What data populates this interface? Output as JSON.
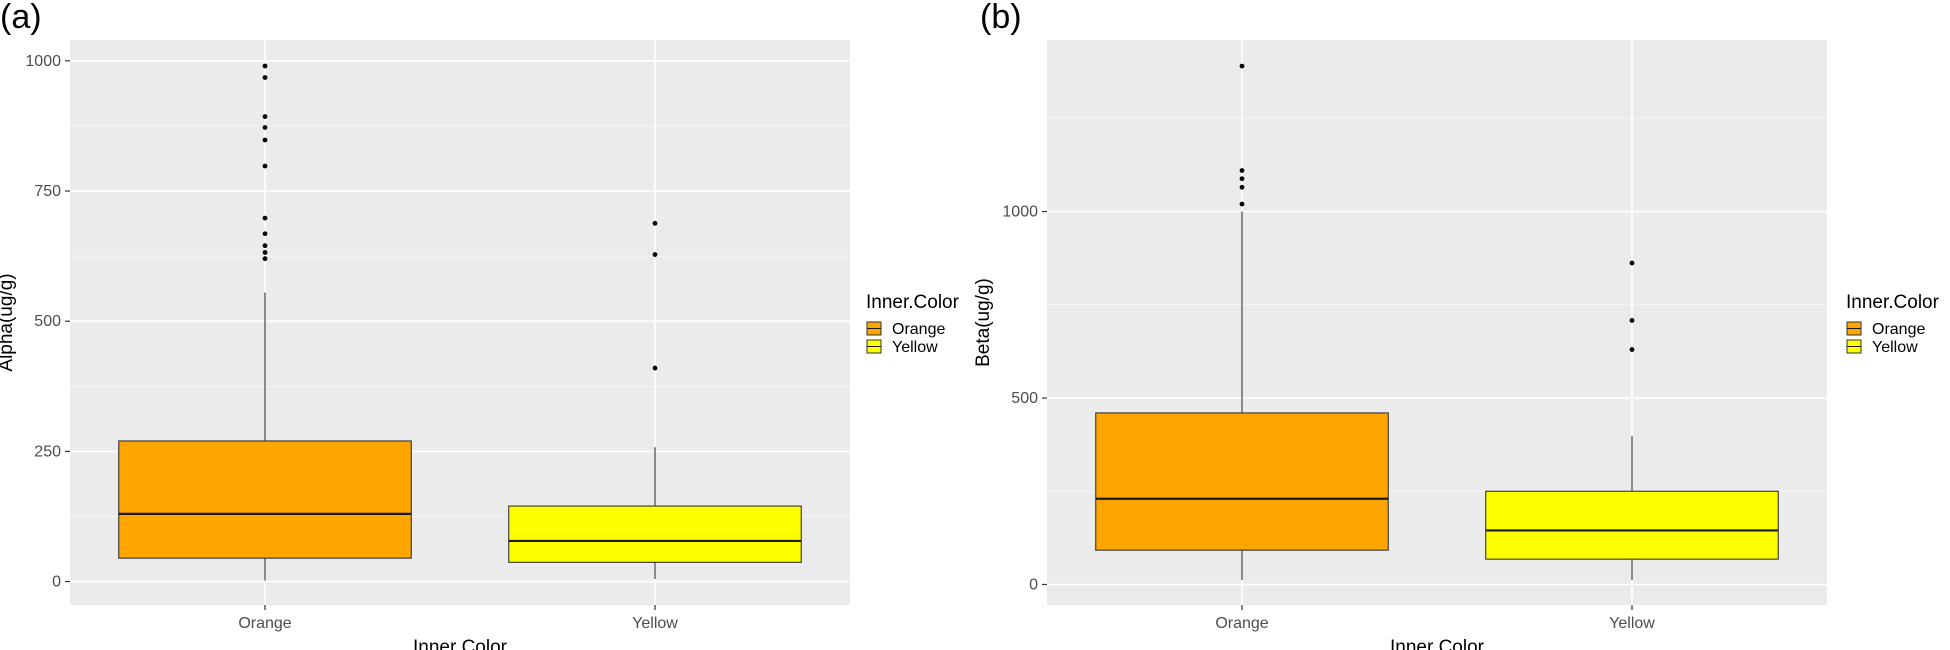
{
  "chart_data": [
    {
      "type": "boxplot",
      "panel_label": "(a)",
      "xlabel": "Inner Color",
      "ylabel": "Alpha(ug/g)",
      "categories": [
        "Orange",
        "Yellow"
      ],
      "yticks": [
        0,
        250,
        500,
        750,
        1000
      ],
      "ylim": [
        -45,
        1040
      ],
      "legend": {
        "title": "Inner.Color",
        "entries": [
          "Orange",
          "Yellow"
        ],
        "position": "right"
      },
      "colors": {
        "Orange": "#FFA500",
        "Yellow": "#FFFF00"
      },
      "boxes": [
        {
          "name": "Orange",
          "min": 2,
          "q1": 45,
          "median": 130,
          "q3": 270,
          "max": 555,
          "outliers": [
            620,
            632,
            645,
            668,
            698,
            798,
            848,
            872,
            893,
            968,
            990
          ]
        },
        {
          "name": "Yellow",
          "min": 5,
          "q1": 37,
          "median": 78,
          "q3": 145,
          "max": 258,
          "outliers": [
            410,
            628,
            688
          ]
        }
      ],
      "grid": true
    },
    {
      "type": "boxplot",
      "panel_label": "(b)",
      "xlabel": "Inner Color",
      "ylabel": "Beta(ug/g)",
      "categories": [
        "Orange",
        "Yellow"
      ],
      "yticks": [
        0,
        500,
        1000
      ],
      "ylim": [
        -55,
        1460
      ],
      "legend": {
        "title": "Inner.Color",
        "entries": [
          "Orange",
          "Yellow"
        ],
        "position": "right"
      },
      "colors": {
        "Orange": "#FFA500",
        "Yellow": "#FFFF00"
      },
      "boxes": [
        {
          "name": "Orange",
          "min": 12,
          "q1": 92,
          "median": 230,
          "q3": 460,
          "max": 1000,
          "outliers": [
            1020,
            1065,
            1088,
            1110,
            1390
          ]
        },
        {
          "name": "Yellow",
          "min": 12,
          "q1": 68,
          "median": 145,
          "q3": 250,
          "max": 398,
          "outliers": [
            630,
            708,
            862
          ]
        }
      ],
      "grid": true
    }
  ]
}
